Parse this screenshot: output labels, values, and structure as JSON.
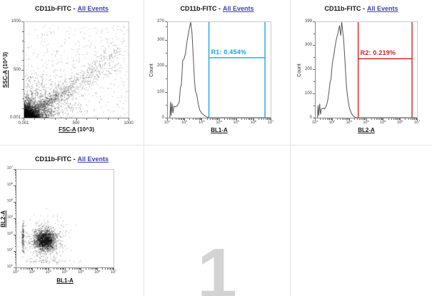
{
  "watermark": {
    "text": "1",
    "color": "#d3d3d3"
  },
  "colors": {
    "link": "#4141b3",
    "grid_border": "#e3e3e3",
    "histogram_line": "#555555",
    "scatter_dot": "#141414",
    "gate1": "#1ca6da",
    "gate2": "#cb2525"
  },
  "chart_data": [
    {
      "type": "scatter",
      "title_prefix": "CD11b-FITC -",
      "title_link": "All Events",
      "x_axis": {
        "label_link": "FSC-A",
        "label_unit": " (10^3)",
        "scale": "linear",
        "ticks": [
          {
            "label": "0.001",
            "pos": 0
          },
          {
            "label": "500",
            "pos": 0.5
          },
          {
            "label": "1000",
            "pos": 1
          }
        ]
      },
      "y_axis": {
        "label_link": "SSC-A",
        "label_unit": " (10^3)",
        "scale": "linear",
        "ticks": [
          {
            "label": "0.001",
            "pos": 0
          },
          {
            "label": "500",
            "pos": 0.5
          },
          {
            "label": "1000",
            "pos": 1
          }
        ]
      },
      "points": {
        "description": "dense population at low FSC-A/SSC-A spreading diagonally to upper right",
        "n_core": 2600,
        "n_diagonal": 950,
        "n_haze": 650,
        "n_sparse": 480
      }
    },
    {
      "type": "histogram",
      "title_prefix": "CD11b-FITC -",
      "title_link": "All Events",
      "x_axis": {
        "label_link": "BL1-A",
        "scale": "log",
        "exp_min": 1,
        "exp_max": 7
      },
      "y_axis": {
        "label": "Count",
        "scale": "linear",
        "max": 370,
        "major_ticks": [
          0,
          100,
          200,
          300,
          370
        ]
      },
      "curve": [
        [
          0.02,
          0
        ],
        [
          0.027,
          62
        ],
        [
          0.032,
          8
        ],
        [
          0.042,
          55
        ],
        [
          0.05,
          18
        ],
        [
          0.06,
          45
        ],
        [
          0.075,
          42
        ],
        [
          0.09,
          45
        ],
        [
          0.1,
          52
        ],
        [
          0.112,
          62
        ],
        [
          0.122,
          118
        ],
        [
          0.132,
          126
        ],
        [
          0.145,
          222
        ],
        [
          0.158,
          228
        ],
        [
          0.172,
          250
        ],
        [
          0.188,
          298
        ],
        [
          0.205,
          336
        ],
        [
          0.222,
          370
        ],
        [
          0.235,
          332
        ],
        [
          0.247,
          238
        ],
        [
          0.258,
          152
        ],
        [
          0.268,
          104
        ],
        [
          0.282,
          88
        ],
        [
          0.296,
          54
        ],
        [
          0.31,
          30
        ],
        [
          0.326,
          20
        ],
        [
          0.345,
          12
        ],
        [
          0.365,
          6
        ],
        [
          0.385,
          2
        ],
        [
          0.405,
          0
        ],
        [
          1,
          0
        ]
      ],
      "gate": {
        "id": "R1",
        "label": "R1: 0.454%",
        "percent": "0.454%",
        "color": "#1ca6da",
        "x_left": 0.4,
        "x_right": 0.945,
        "y_count": 232
      }
    },
    {
      "type": "histogram",
      "title_prefix": "CD11b-FITC -",
      "title_link": "All Events",
      "x_axis": {
        "label_link": "BL2-A",
        "scale": "log",
        "exp_min": 1,
        "exp_max": 7
      },
      "y_axis": {
        "label": "Count",
        "scale": "linear",
        "max": 399,
        "major_ticks": [
          0,
          100,
          200,
          300,
          399
        ]
      },
      "curve": [
        [
          0.018,
          0
        ],
        [
          0.024,
          52
        ],
        [
          0.03,
          8
        ],
        [
          0.04,
          58
        ],
        [
          0.048,
          14
        ],
        [
          0.058,
          36
        ],
        [
          0.072,
          40
        ],
        [
          0.088,
          36
        ],
        [
          0.1,
          44
        ],
        [
          0.112,
          58
        ],
        [
          0.122,
          78
        ],
        [
          0.132,
          108
        ],
        [
          0.142,
          148
        ],
        [
          0.152,
          162
        ],
        [
          0.165,
          228
        ],
        [
          0.178,
          258
        ],
        [
          0.192,
          298
        ],
        [
          0.205,
          328
        ],
        [
          0.22,
          352
        ],
        [
          0.235,
          385
        ],
        [
          0.247,
          342
        ],
        [
          0.258,
          399
        ],
        [
          0.268,
          358
        ],
        [
          0.276,
          328
        ],
        [
          0.287,
          252
        ],
        [
          0.297,
          178
        ],
        [
          0.307,
          118
        ],
        [
          0.318,
          78
        ],
        [
          0.332,
          44
        ],
        [
          0.347,
          24
        ],
        [
          0.362,
          12
        ],
        [
          0.38,
          4
        ],
        [
          0.4,
          0
        ],
        [
          1,
          0
        ]
      ],
      "gate": {
        "id": "R2",
        "label": "R2: 0.219%",
        "percent": "0.219%",
        "color": "#cb2525",
        "x_left": 0.42,
        "x_right": 0.951,
        "y_count": 246
      }
    },
    {
      "type": "scatter",
      "title_prefix": "CD11b-FITC -",
      "title_link": "All Events",
      "x_axis": {
        "label_link": "BL1-A",
        "scale": "log",
        "exp_min": 1,
        "exp_max": 7
      },
      "y_axis": {
        "label_link": "BL2-A",
        "scale": "log",
        "exp_min": 1,
        "exp_max": 7
      },
      "points": {
        "description": "dense double-positive cluster low-left with sparse halo",
        "clusters": [
          {
            "n": 1500,
            "cx": 0.29,
            "cy": 0.28,
            "sx": 0.055,
            "sy": 0.05,
            "alpha": 0.55
          },
          {
            "n": 420,
            "cx": 0.29,
            "cy": 0.28,
            "sx": 0.11,
            "sy": 0.095,
            "alpha": 0.4
          },
          {
            "n": 130,
            "cx": 0.065,
            "cy": 0.29,
            "sx": 0.006,
            "sy": 0.085,
            "alpha": 0.5
          },
          {
            "n": 60,
            "cx": 0.3,
            "cy": 0.065,
            "sx": 0.12,
            "sy": 0.012,
            "alpha": 0.45
          },
          {
            "n": 60,
            "cx": 0.38,
            "cy": 0.42,
            "sx": 0.1,
            "sy": 0.07,
            "alpha": 0.35
          }
        ]
      }
    }
  ]
}
